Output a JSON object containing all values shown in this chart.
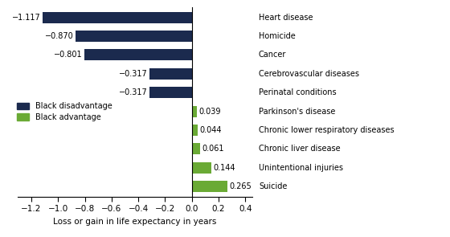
{
  "categories": [
    "Heart disease",
    "Homicide",
    "Cancer",
    "Cerebrovascular diseases",
    "Perinatal conditions",
    "Parkinson's disease",
    "Chronic lower respiratory diseases",
    "Chronic liver disease",
    "Unintentional injuries",
    "Suicide"
  ],
  "values": [
    -1.117,
    -0.87,
    -0.801,
    -0.317,
    -0.317,
    0.039,
    0.044,
    0.061,
    0.144,
    0.265
  ],
  "colors": [
    "#1b2a4e",
    "#1b2a4e",
    "#1b2a4e",
    "#1b2a4e",
    "#1b2a4e",
    "#6aaa35",
    "#6aaa35",
    "#6aaa35",
    "#6aaa35",
    "#6aaa35"
  ],
  "xlabel": "Loss or gain in life expectancy in years",
  "xlim": [
    -1.3,
    0.45
  ],
  "xticks": [
    -1.2,
    -1.0,
    -0.8,
    -0.6,
    -0.4,
    -0.2,
    0.0,
    0.2,
    0.4
  ],
  "xtick_labels": [
    "−1.2",
    "−1.0",
    "−0.8",
    "−0.6",
    "−0.4",
    "−0.2",
    "0.0",
    "0.2",
    "0.4"
  ],
  "legend_labels": [
    "Black disadvantage",
    "Black advantage"
  ],
  "legend_colors": [
    "#1b2a4e",
    "#6aaa35"
  ],
  "bar_height": 0.6,
  "label_fontsize": 7.0,
  "axis_fontsize": 7.5,
  "tick_fontsize": 7.5,
  "background_color": "#ffffff",
  "value_labels": [
    "−1.117",
    "−0.870",
    "−0.801",
    "−0.317",
    "−0.317",
    "0.039",
    "0.044",
    "0.061",
    "0.144",
    "0.265"
  ]
}
